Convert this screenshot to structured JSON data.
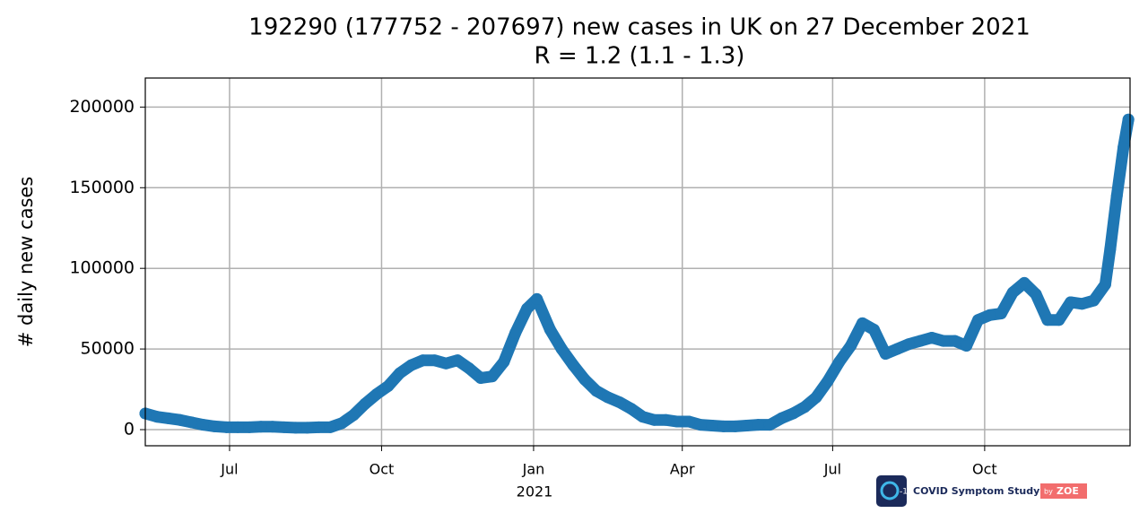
{
  "chart_data": {
    "type": "scatter",
    "title": "192290 (177752 - 207697) new cases in UK on 27 December 2021",
    "subtitle": "R = 1.2 (1.1 - 1.3)",
    "y_label": "# daily new cases",
    "year_label": "2021",
    "color": "#1f77b4",
    "grid": true,
    "x": [
      -51,
      -44,
      -37,
      -30,
      -23,
      -16,
      -9,
      -2,
      5,
      12,
      19,
      26,
      33,
      40,
      47,
      54,
      61,
      68,
      75,
      82,
      89,
      96,
      103,
      110,
      117,
      124,
      131,
      138,
      145,
      152,
      159,
      166,
      173,
      180,
      186,
      194,
      201,
      208,
      215,
      222,
      229,
      236,
      243,
      250,
      257,
      264,
      271,
      278,
      285,
      292,
      299,
      306,
      313,
      320,
      327,
      334,
      341,
      348,
      355,
      362,
      369,
      376,
      383,
      390,
      397,
      404,
      411,
      418,
      425,
      432,
      439,
      446,
      453,
      460,
      467,
      474,
      481,
      488,
      495,
      502,
      509,
      516,
      523,
      530,
      533,
      537,
      541,
      544
    ],
    "values": [
      10000,
      8000,
      7000,
      6000,
      4500,
      3000,
      2000,
      1500,
      1500,
      1500,
      1800,
      1800,
      1500,
      1200,
      1200,
      1500,
      1500,
      4000,
      9000,
      16000,
      22000,
      27000,
      35000,
      40000,
      43000,
      43000,
      41000,
      43000,
      38000,
      32000,
      33000,
      42000,
      60000,
      75000,
      81000,
      62000,
      50000,
      40000,
      31000,
      24000,
      20000,
      17000,
      13000,
      8000,
      6000,
      6000,
      5000,
      5000,
      3000,
      2500,
      2000,
      2000,
      2500,
      3000,
      3000,
      7000,
      10000,
      14000,
      20000,
      30000,
      42000,
      52000,
      66000,
      62000,
      47000,
      50000,
      53000,
      55000,
      57000,
      55000,
      55000,
      52000,
      68000,
      71000,
      72000,
      85000,
      91000,
      84000,
      68000,
      68000,
      79000,
      78000,
      80000,
      90000,
      112000,
      145000,
      175000,
      192290
    ],
    "xlim": [
      -51,
      545
    ],
    "xticks": [
      {
        "value": 0,
        "label": "Jul"
      },
      {
        "value": 92,
        "label": "Oct"
      },
      {
        "value": 184,
        "label": "Jan"
      },
      {
        "value": 274,
        "label": "Apr"
      },
      {
        "value": 365,
        "label": "Jul"
      },
      {
        "value": 457,
        "label": "Oct"
      }
    ],
    "ylim": [
      -10000,
      218000
    ],
    "yticks": [
      0,
      50000,
      100000,
      150000,
      200000
    ]
  },
  "logo": {
    "badge": "-19",
    "name": "COVID Symptom Study",
    "by": "by",
    "brand": "ZOE"
  }
}
